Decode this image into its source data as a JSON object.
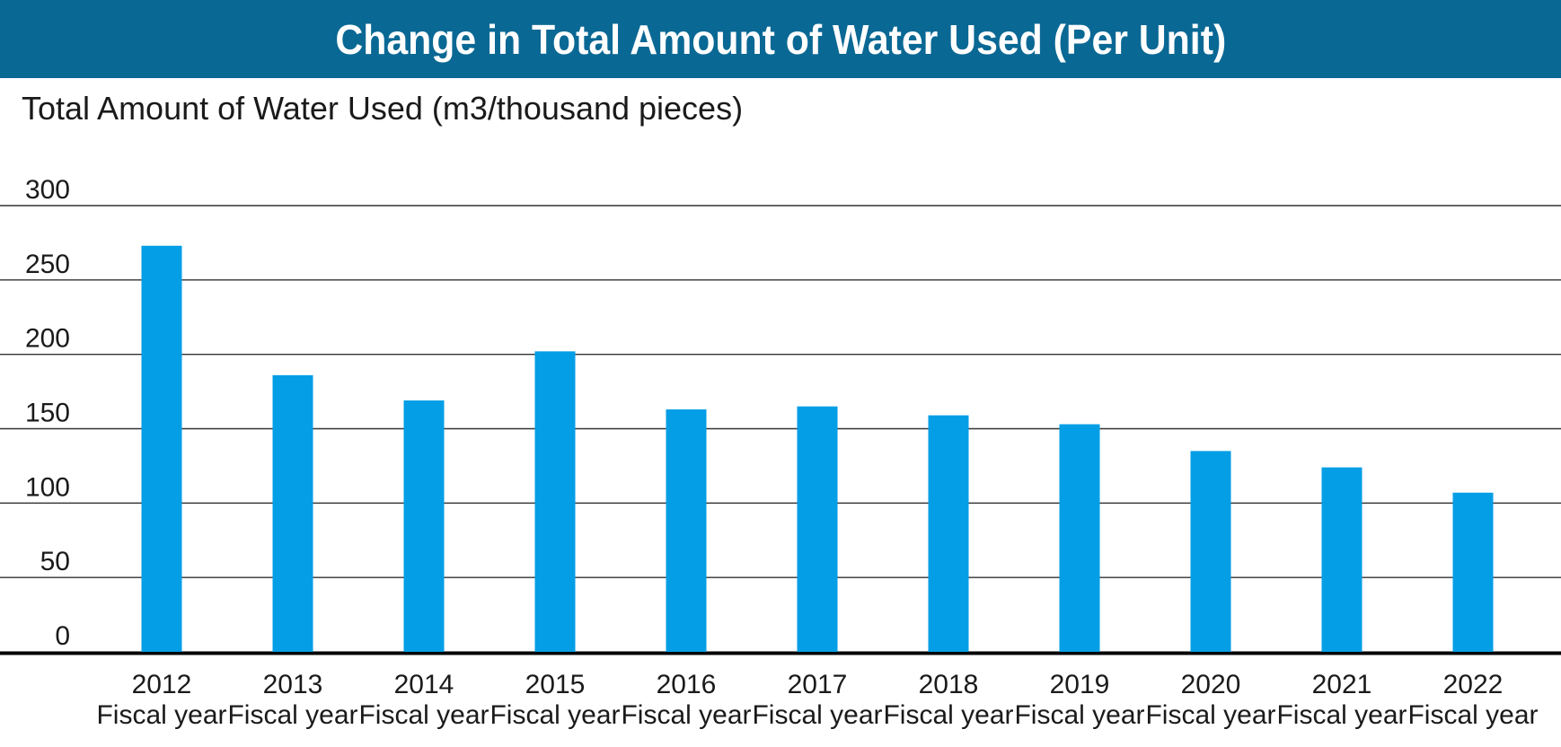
{
  "title": "Change in Total Amount of Water Used (Per Unit)",
  "colors": {
    "title_bar": "#0a6894",
    "title_text": "#ffffff",
    "bar": "#039ee6",
    "grid": "#333333",
    "text": "#1a1a1a"
  },
  "chart_data": {
    "type": "bar",
    "title": "Change in Total Amount of Water Used (Per Unit)",
    "ylabel": "Total Amount of Water Used (m3/thousand pieces)",
    "xlabel": "",
    "ylim": [
      0,
      300
    ],
    "yticks": [
      0,
      50,
      100,
      150,
      200,
      250,
      300
    ],
    "grid": true,
    "legend": "none",
    "categories": [
      [
        "2012",
        "Fiscal year"
      ],
      [
        "2013",
        "Fiscal year"
      ],
      [
        "2014",
        "Fiscal year"
      ],
      [
        "2015",
        "Fiscal year"
      ],
      [
        "2016",
        "Fiscal year"
      ],
      [
        "2017",
        "Fiscal year"
      ],
      [
        "2018",
        "Fiscal year"
      ],
      [
        "2019",
        "Fiscal year"
      ],
      [
        "2020",
        "Fiscal year"
      ],
      [
        "2021",
        "Fiscal year"
      ],
      [
        "2022",
        "Fiscal year"
      ]
    ],
    "values": [
      273,
      186,
      169,
      202,
      163,
      165,
      159,
      153,
      135,
      124,
      107
    ]
  }
}
